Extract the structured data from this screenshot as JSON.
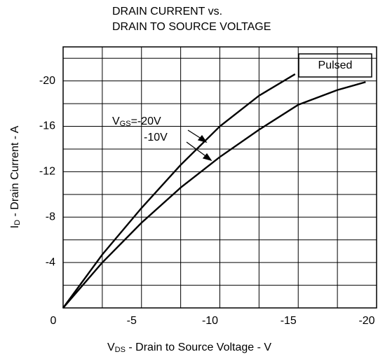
{
  "chart_data": {
    "type": "line",
    "title": [
      "DRAIN CURRENT vs.",
      "DRAIN TO SOURCE VOLTAGE"
    ],
    "x_label": {
      "main": "V",
      "sub": "DS",
      "rest": " -  Drain to Source Voltage - V"
    },
    "y_label": {
      "main": "I",
      "sub": "D",
      "rest": " -  Drain Current - A"
    },
    "xlim": [
      0,
      -20
    ],
    "ylim": [
      0,
      -23
    ],
    "xticks": [
      0,
      -5,
      -10,
      -15,
      -20
    ],
    "xminor": [
      -2.5,
      -7.5,
      -12.5,
      -17.5
    ],
    "yticks": [
      -4,
      -8,
      -12,
      -16,
      -20
    ],
    "yminor": [
      -2,
      -6,
      -10,
      -14,
      -18,
      -22
    ],
    "grid": true,
    "legend_box": "Pulsed",
    "series_prefix": {
      "main": "V",
      "sub": "GS",
      "eq": "="
    },
    "series": [
      {
        "name": "-20V",
        "color": "#000000",
        "x": [
          0,
          -2.5,
          -5,
          -7.5,
          -10,
          -12.5,
          -14.8
        ],
        "values": [
          0,
          -4.7,
          -8.8,
          -12.6,
          -16,
          -18.7,
          -20.6
        ]
      },
      {
        "name": "-10V",
        "color": "#000000",
        "x": [
          0,
          -2.5,
          -5,
          -7.5,
          -10,
          -12.5,
          -15,
          -17.5,
          -19.3
        ],
        "values": [
          0,
          -4.0,
          -7.5,
          -10.6,
          -13.3,
          -15.7,
          -17.9,
          -19.2,
          -19.9
        ]
      }
    ]
  }
}
